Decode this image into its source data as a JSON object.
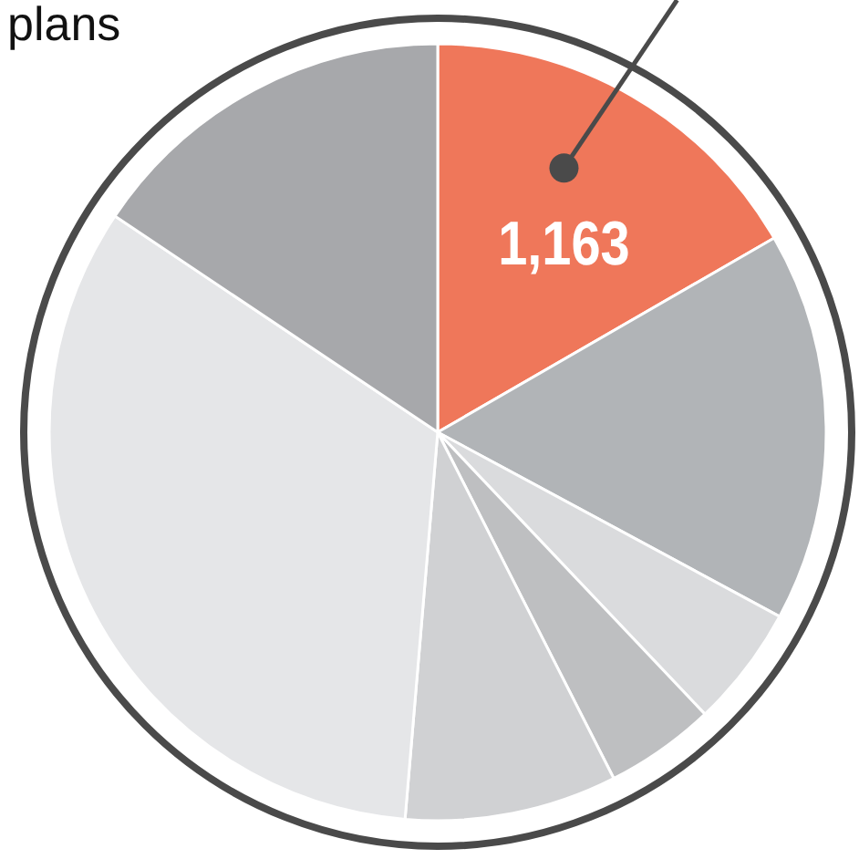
{
  "chart_data": {
    "type": "pie",
    "categories": [
      null,
      null,
      null,
      null,
      null,
      null,
      null
    ],
    "values": [
      1163,
      1130,
      353,
      320,
      616,
      2306,
      1089
    ],
    "colors": [
      "#ef775a",
      "#b1b4b7",
      "#dadbdd",
      "#bebfc1",
      "#d0d1d3",
      "#e5e6e8",
      "#a7a8ab"
    ],
    "value_labels": [
      "1,163",
      null,
      null,
      null,
      null,
      null,
      null
    ],
    "annotations": [
      "plans"
    ]
  }
}
